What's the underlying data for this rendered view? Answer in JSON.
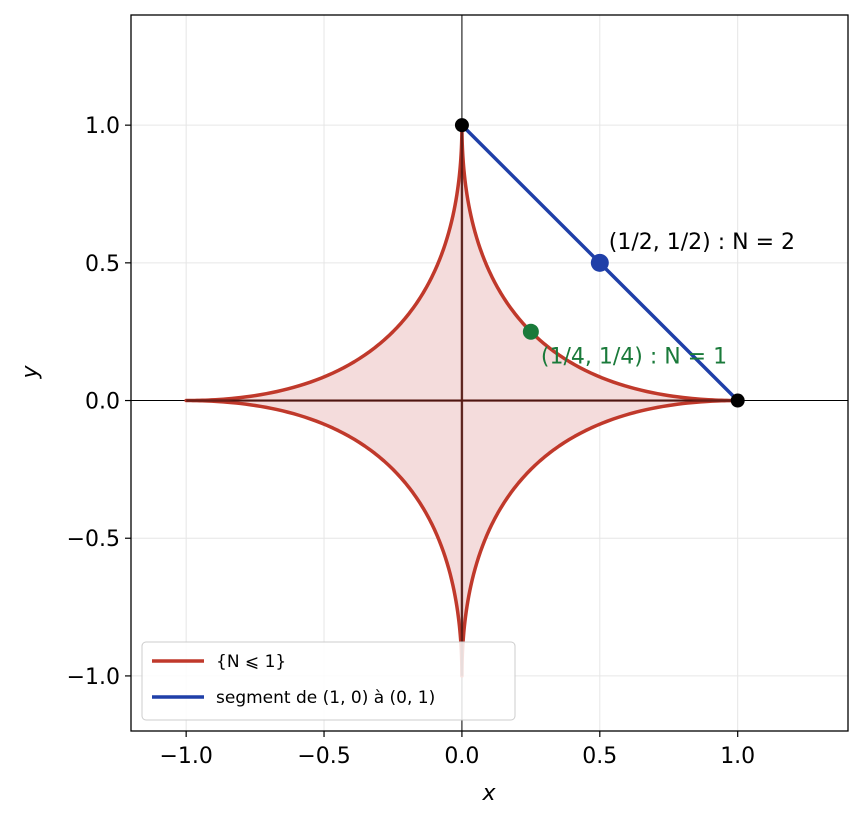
{
  "chart_data": {
    "type": "line",
    "title": "",
    "xlabel": "x",
    "ylabel": "y",
    "xlim": [
      -1.2,
      1.4
    ],
    "ylim": [
      -1.2,
      1.4
    ],
    "xticks": [
      -1.0,
      -0.5,
      0.0,
      0.5,
      1.0
    ],
    "yticks": [
      -1.0,
      -0.5,
      0.0,
      0.5,
      1.0
    ],
    "xtick_labels": [
      "−1.0",
      "−0.5",
      "0.0",
      "0.5",
      "1.0"
    ],
    "ytick_labels": [
      "−1.0",
      "−0.5",
      "0.0",
      "0.5",
      "1.0"
    ],
    "grid": true,
    "legend_position": "lower-left",
    "series": [
      {
        "name": "{N ⩽ 1}",
        "kind": "astroid |x|^(1/2) + |y|^(1/2) = 1, filled",
        "color": "#c0392b",
        "fill_color": "#f4dcdc",
        "x": [
          1.0,
          0.81,
          0.64,
          0.49,
          0.36,
          0.25,
          0.16,
          0.09,
          0.04,
          0.01,
          0.0
        ],
        "y": [
          0.0,
          0.01,
          0.04,
          0.09,
          0.16,
          0.25,
          0.36,
          0.49,
          0.64,
          0.81,
          1.0
        ]
      },
      {
        "name": "segment de (1, 0) à (0, 1)",
        "kind": "line segment",
        "color": "#1f3fa8",
        "x": [
          1.0,
          0.0
        ],
        "y": [
          0.0,
          1.0
        ]
      }
    ],
    "points": [
      {
        "x": 0.0,
        "y": 1.0,
        "color": "#000000"
      },
      {
        "x": 1.0,
        "y": 0.0,
        "color": "#000000"
      },
      {
        "x": 0.5,
        "y": 0.5,
        "color": "#1f3fa8",
        "label": "(1/2, 1/2) : N = 2",
        "label_color": "#000000"
      },
      {
        "x": 0.25,
        "y": 0.25,
        "color": "#1a7a3a",
        "label": "(1/4, 1/4) : N = 1",
        "label_color": "#1a7a3a"
      }
    ]
  }
}
